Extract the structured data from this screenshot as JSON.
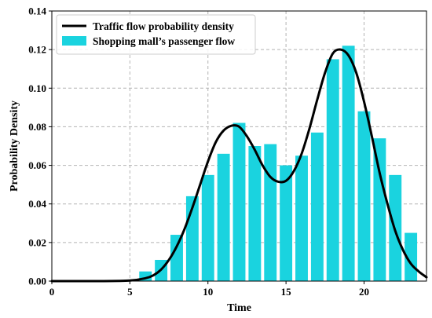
{
  "chart_data": {
    "type": "bar",
    "title": "",
    "xlabel": "Time",
    "ylabel": "Probability Density",
    "xlim": [
      0,
      24
    ],
    "ylim": [
      0,
      0.14
    ],
    "xticks": [
      0,
      5,
      10,
      15,
      20
    ],
    "xtick_labels": [
      "0",
      "5",
      "10",
      "15",
      "20"
    ],
    "yticks": [
      0,
      0.02,
      0.04,
      0.06,
      0.08,
      0.1,
      0.12,
      0.14
    ],
    "ytick_labels": [
      "0.00",
      "0.02",
      "0.04",
      "0.06",
      "0.08",
      "0.10",
      "0.12",
      "0.14"
    ],
    "grid": true,
    "legend_position": "top-left",
    "series": [
      {
        "name": "Shopping mall’s passenger flow",
        "kind": "bar",
        "color": "#1ad3df",
        "x": [
          6,
          7,
          8,
          9,
          10,
          11,
          12,
          13,
          14,
          15,
          16,
          17,
          18,
          19,
          20,
          21,
          22,
          23
        ],
        "values": [
          0.005,
          0.011,
          0.024,
          0.044,
          0.055,
          0.066,
          0.082,
          0.07,
          0.071,
          0.06,
          0.065,
          0.077,
          0.115,
          0.122,
          0.088,
          0.074,
          0.055,
          0.025
        ]
      },
      {
        "name": "Traffic flow probability density",
        "kind": "line",
        "color": "#000000",
        "x": [
          0,
          3,
          5,
          6,
          6.5,
          7,
          7.5,
          8,
          8.5,
          9,
          9.5,
          10,
          10.5,
          11,
          11.5,
          12,
          12.5,
          13,
          13.5,
          14,
          14.5,
          15,
          15.5,
          16,
          16.5,
          17,
          17.5,
          18,
          18.5,
          19,
          19.5,
          20,
          20.5,
          21,
          21.5,
          22,
          22.5,
          23,
          23.5,
          24
        ],
        "values": [
          0.0,
          0.0,
          0.0003,
          0.0015,
          0.003,
          0.006,
          0.011,
          0.018,
          0.027,
          0.038,
          0.05,
          0.062,
          0.072,
          0.078,
          0.0805,
          0.08,
          0.075,
          0.068,
          0.06,
          0.054,
          0.0515,
          0.052,
          0.057,
          0.066,
          0.079,
          0.094,
          0.108,
          0.118,
          0.12,
          0.117,
          0.108,
          0.093,
          0.075,
          0.056,
          0.04,
          0.026,
          0.016,
          0.009,
          0.005,
          0.002
        ]
      }
    ]
  }
}
